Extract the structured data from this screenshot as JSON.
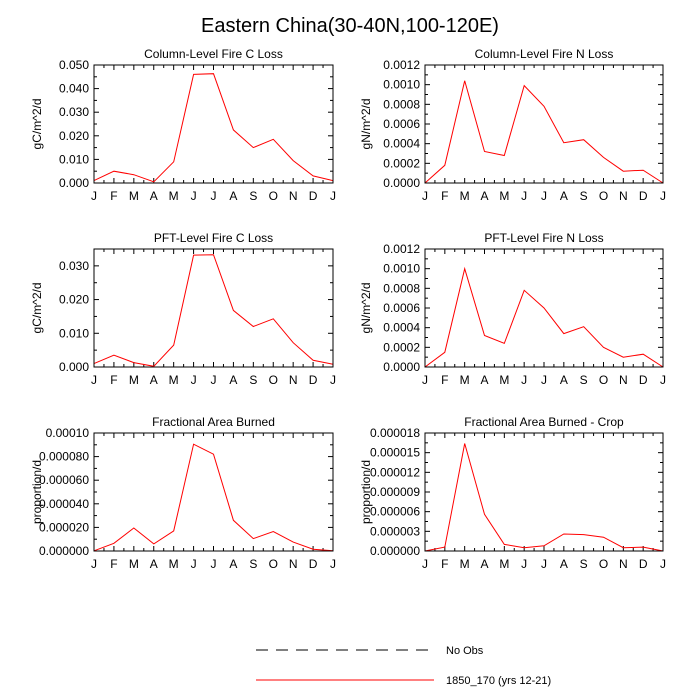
{
  "figure_title": "Eastern China(30-40N,100-120E)",
  "chart_data": [
    {
      "type": "line",
      "title": "Column-Level Fire C Loss",
      "xlabel": "",
      "ylabel": "gC/m^2/d",
      "x_ticks": [
        "J",
        "F",
        "M",
        "A",
        "M",
        "J",
        "J",
        "A",
        "S",
        "O",
        "N",
        "D",
        "J"
      ],
      "ylim": [
        0,
        0.05
      ],
      "y_ticks": [
        "0.000",
        "0.010",
        "0.020",
        "0.030",
        "0.040",
        "0.050"
      ],
      "series": [
        {
          "name": "1850_170 (yrs 12-21)",
          "color": "#ff0000",
          "values": [
            0.001,
            0.005,
            0.0035,
            0.0005,
            0.009,
            0.046,
            0.0463,
            0.0225,
            0.015,
            0.0185,
            0.0095,
            0.003,
            0.001
          ]
        }
      ]
    },
    {
      "type": "line",
      "title": "Column-Level Fire N Loss",
      "xlabel": "",
      "ylabel": "gN/m^2/d",
      "x_ticks": [
        "J",
        "F",
        "M",
        "A",
        "M",
        "J",
        "J",
        "A",
        "S",
        "O",
        "N",
        "D",
        "J"
      ],
      "ylim": [
        0,
        0.0012
      ],
      "y_ticks": [
        "0.0000",
        "0.0002",
        "0.0004",
        "0.0006",
        "0.0008",
        "0.0010",
        "0.0012"
      ],
      "series": [
        {
          "name": "1850_170 (yrs 12-21)",
          "color": "#ff0000",
          "values": [
            0.0,
            0.00018,
            0.00104,
            0.00032,
            0.00028,
            0.00099,
            0.00078,
            0.00041,
            0.00044,
            0.00026,
            0.00012,
            0.00013,
            0.0
          ]
        }
      ]
    },
    {
      "type": "line",
      "title": "PFT-Level Fire C Loss",
      "xlabel": "",
      "ylabel": "gC/m^2/d",
      "x_ticks": [
        "J",
        "F",
        "M",
        "A",
        "M",
        "J",
        "J",
        "A",
        "S",
        "O",
        "N",
        "D",
        "J"
      ],
      "ylim": [
        0,
        0.035
      ],
      "y_ticks": [
        "0.000",
        "0.010",
        "0.020",
        "0.030"
      ],
      "y_tick_values": [
        0,
        0.01,
        0.02,
        0.03
      ],
      "series": [
        {
          "name": "1850_170 (yrs 12-21)",
          "color": "#ff0000",
          "values": [
            0.001,
            0.0035,
            0.0013,
            0.0002,
            0.0065,
            0.0332,
            0.0333,
            0.0168,
            0.012,
            0.0143,
            0.0072,
            0.002,
            0.0008
          ]
        }
      ]
    },
    {
      "type": "line",
      "title": "PFT-Level Fire N Loss",
      "xlabel": "",
      "ylabel": "gN/m^2/d",
      "x_ticks": [
        "J",
        "F",
        "M",
        "A",
        "M",
        "J",
        "J",
        "A",
        "S",
        "O",
        "N",
        "D",
        "J"
      ],
      "ylim": [
        0,
        0.0012
      ],
      "y_ticks": [
        "0.0000",
        "0.0002",
        "0.0004",
        "0.0006",
        "0.0008",
        "0.0010",
        "0.0012"
      ],
      "series": [
        {
          "name": "1850_170 (yrs 12-21)",
          "color": "#ff0000",
          "values": [
            0.0,
            0.00015,
            0.001,
            0.00032,
            0.00024,
            0.00078,
            0.0006,
            0.00034,
            0.00041,
            0.0002,
            0.0001,
            0.00013,
            0.0
          ]
        }
      ]
    },
    {
      "type": "line",
      "title": "Fractional Area Burned",
      "xlabel": "",
      "ylabel": "proportion/d",
      "x_ticks": [
        "J",
        "F",
        "M",
        "A",
        "M",
        "J",
        "J",
        "A",
        "S",
        "O",
        "N",
        "D",
        "J"
      ],
      "ylim": [
        0,
        0.0001
      ],
      "y_ticks": [
        "0.000000",
        "0.000020",
        "0.000040",
        "0.000060",
        "0.000080",
        "0.00010"
      ],
      "series": [
        {
          "name": "1850_170 (yrs 12-21)",
          "color": "#ff0000",
          "values": [
            2e-07,
            6.5e-06,
            1.95e-05,
            6e-06,
            1.7e-05,
            9.05e-05,
            8.2e-05,
            2.6e-05,
            1.05e-05,
            1.65e-05,
            7.5e-06,
            1.5e-06,
            2e-07
          ]
        }
      ]
    },
    {
      "type": "line",
      "title": "Fractional Area Burned - Crop",
      "xlabel": "",
      "ylabel": "proportion/d",
      "x_ticks": [
        "J",
        "F",
        "M",
        "A",
        "M",
        "J",
        "J",
        "A",
        "S",
        "O",
        "N",
        "D",
        "J"
      ],
      "ylim": [
        0,
        1.8e-05
      ],
      "y_ticks": [
        "0.000000",
        "0.000003",
        "0.000006",
        "0.000009",
        "0.000012",
        "0.000015",
        "0.000018"
      ],
      "series": [
        {
          "name": "1850_170 (yrs 12-21)",
          "color": "#ff0000",
          "values": [
            0.0,
            6e-07,
            1.64e-05,
            5.6e-06,
            1e-06,
            5e-07,
            8e-07,
            2.6e-06,
            2.5e-06,
            2.1e-06,
            5e-07,
            6e-07,
            0.0
          ]
        }
      ]
    }
  ],
  "legend": [
    {
      "label": "No Obs",
      "style": "dashed",
      "color": "#000000"
    },
    {
      "label": "1850_170 (yrs 12-21)",
      "style": "solid",
      "color": "#ff0000"
    }
  ]
}
